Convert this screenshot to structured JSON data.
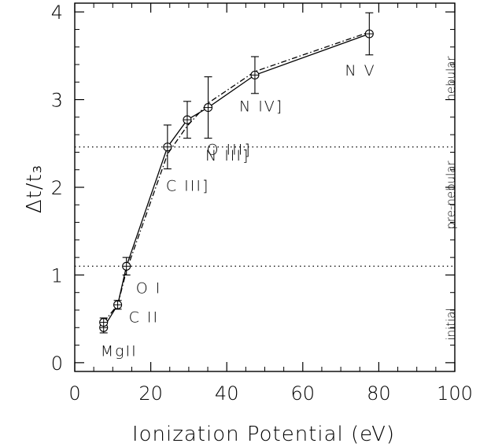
{
  "chart_data": {
    "type": "line",
    "title": "",
    "xlabel": "Ionization Potential (eV)",
    "ylabel": "Δt/t₃",
    "xlim": [
      0,
      100
    ],
    "ylim": [
      -0.1,
      4.1
    ],
    "xticks": [
      0,
      20,
      40,
      60,
      80,
      100
    ],
    "yticks": [
      0,
      1,
      2,
      3,
      4
    ],
    "xtick_labels": [
      "0",
      "20",
      "40",
      "60",
      "80",
      "100"
    ],
    "ytick_labels": [
      "0",
      "1",
      "2",
      "3",
      "4"
    ],
    "grid": false,
    "points": [
      {
        "label": "MgII",
        "x": 7.6,
        "y": 0.4,
        "err": 0.06
      },
      {
        "label": "",
        "x": 7.6,
        "y": 0.46,
        "err": 0.05
      },
      {
        "label": "C II",
        "x": 11.3,
        "y": 0.66,
        "err": 0.05
      },
      {
        "label": "O I",
        "x": 13.6,
        "y": 1.1,
        "err": 0.1
      },
      {
        "label": "C III]",
        "x": 24.4,
        "y": 2.46,
        "err": 0.25
      },
      {
        "label": "N III]",
        "x": 29.6,
        "y": 2.77,
        "err": 0.21
      },
      {
        "label": "O III]",
        "x": 35.1,
        "y": 2.91,
        "err": 0.35
      },
      {
        "label": "N IV]",
        "x": 47.4,
        "y": 3.28,
        "err": 0.21
      },
      {
        "label": "N V",
        "x": 77.5,
        "y": 3.75,
        "err": 0.24
      }
    ],
    "series": [
      {
        "style": "solid",
        "x": [
          7.6,
          11.3,
          13.6,
          24.4,
          29.6,
          35.1,
          47.4,
          77.5
        ],
        "y": [
          0.4,
          0.66,
          1.1,
          2.46,
          2.77,
          2.91,
          3.28,
          3.75
        ]
      },
      {
        "style": "dash-dot",
        "x": [
          7.6,
          11.3,
          13.6,
          24.4,
          29.6,
          35.1,
          47.4,
          77.5
        ],
        "y": [
          0.46,
          0.66,
          1.05,
          2.38,
          2.7,
          2.96,
          3.32,
          3.77
        ]
      }
    ],
    "thresholds": [
      {
        "y": 1.1,
        "style": "dotted"
      },
      {
        "y": 2.46,
        "style": "dotted"
      }
    ],
    "region_labels": [
      "nebular",
      "pre-nebular",
      "initial"
    ]
  }
}
